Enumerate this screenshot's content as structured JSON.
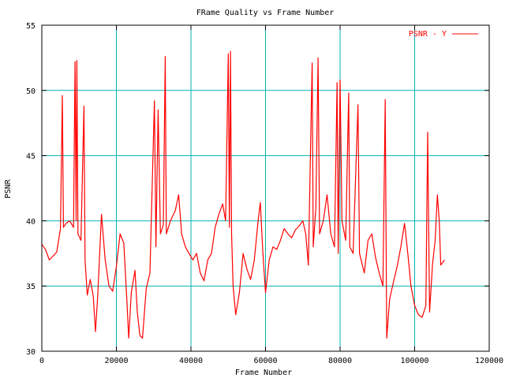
{
  "chart_data": {
    "type": "line",
    "title": "FRame Quality vs Frame Number",
    "xlabel": "Frame Number",
    "ylabel": "PSNR",
    "xlim": [
      0,
      120000
    ],
    "ylim": [
      30,
      55
    ],
    "x_ticks": [
      0,
      20000,
      40000,
      60000,
      80000,
      100000,
      120000
    ],
    "y_ticks": [
      30,
      35,
      40,
      45,
      50,
      55
    ],
    "x_tick_labels": [
      "0",
      "20000",
      "40000",
      "60000",
      "80000",
      "100000",
      "120000"
    ],
    "y_tick_labels": [
      "30",
      "35",
      "40",
      "45",
      "50",
      "55"
    ],
    "grid": true,
    "legend_position": "top-right",
    "colors": {
      "series": "#ff0000",
      "grid": "#00b3b3",
      "axis": "#000000",
      "text": "#000000"
    },
    "series": [
      {
        "name": "PSNR - Y",
        "points": [
          [
            0,
            38.2
          ],
          [
            1000,
            37.8
          ],
          [
            2000,
            37.0
          ],
          [
            3000,
            37.3
          ],
          [
            4000,
            37.6
          ],
          [
            5000,
            39.4
          ],
          [
            5500,
            49.6
          ],
          [
            5800,
            39.5
          ],
          [
            6500,
            39.8
          ],
          [
            7500,
            40.0
          ],
          [
            8500,
            39.5
          ],
          [
            8900,
            52.2
          ],
          [
            9200,
            40.0
          ],
          [
            9400,
            52.3
          ],
          [
            9700,
            39.0
          ],
          [
            10500,
            38.5
          ],
          [
            11300,
            48.8
          ],
          [
            11600,
            37.0
          ],
          [
            12200,
            34.3
          ],
          [
            13000,
            35.5
          ],
          [
            13800,
            34.2
          ],
          [
            14400,
            31.5
          ],
          [
            15000,
            34.3
          ],
          [
            16000,
            40.5
          ],
          [
            17000,
            37.0
          ],
          [
            18000,
            35.0
          ],
          [
            19000,
            34.6
          ],
          [
            20000,
            36.5
          ],
          [
            21000,
            39.0
          ],
          [
            22000,
            38.3
          ],
          [
            22800,
            34.0
          ],
          [
            23300,
            31.0
          ],
          [
            24000,
            34.5
          ],
          [
            25000,
            36.2
          ],
          [
            25600,
            33.0
          ],
          [
            26300,
            31.2
          ],
          [
            27000,
            31.0
          ],
          [
            28000,
            34.8
          ],
          [
            29000,
            36.0
          ],
          [
            30200,
            49.2
          ],
          [
            30600,
            38.0
          ],
          [
            31200,
            48.5
          ],
          [
            31800,
            39.0
          ],
          [
            32600,
            39.7
          ],
          [
            33100,
            52.6
          ],
          [
            33400,
            39.0
          ],
          [
            34500,
            40.0
          ],
          [
            35800,
            40.8
          ],
          [
            36700,
            42.0
          ],
          [
            37500,
            39.0
          ],
          [
            38500,
            38.0
          ],
          [
            39500,
            37.5
          ],
          [
            40500,
            37.0
          ],
          [
            41500,
            37.5
          ],
          [
            42500,
            36.0
          ],
          [
            43500,
            35.4
          ],
          [
            44500,
            37.0
          ],
          [
            45500,
            37.5
          ],
          [
            46500,
            39.5
          ],
          [
            47500,
            40.5
          ],
          [
            48500,
            41.3
          ],
          [
            49300,
            40.0
          ],
          [
            50000,
            52.8
          ],
          [
            50300,
            39.5
          ],
          [
            50600,
            53.0
          ],
          [
            50900,
            39.0
          ],
          [
            51300,
            35.0
          ],
          [
            52000,
            32.8
          ],
          [
            53000,
            34.5
          ],
          [
            54000,
            37.5
          ],
          [
            55000,
            36.3
          ],
          [
            56000,
            35.5
          ],
          [
            57000,
            37.0
          ],
          [
            58000,
            40.0
          ],
          [
            58600,
            41.4
          ],
          [
            59300,
            37.5
          ],
          [
            60000,
            34.5
          ],
          [
            61000,
            37.0
          ],
          [
            62000,
            38.0
          ],
          [
            63000,
            37.8
          ],
          [
            64000,
            38.5
          ],
          [
            65000,
            39.4
          ],
          [
            66000,
            39.0
          ],
          [
            67000,
            38.7
          ],
          [
            68000,
            39.3
          ],
          [
            69000,
            39.6
          ],
          [
            70000,
            40.0
          ],
          [
            70800,
            39.0
          ],
          [
            71500,
            36.6
          ],
          [
            72500,
            52.1
          ],
          [
            72800,
            38.0
          ],
          [
            73500,
            41.0
          ],
          [
            74100,
            52.5
          ],
          [
            74500,
            39.0
          ],
          [
            75500,
            40.0
          ],
          [
            76500,
            42.0
          ],
          [
            77500,
            39.0
          ],
          [
            78500,
            38.0
          ],
          [
            79200,
            50.6
          ],
          [
            79500,
            37.5
          ],
          [
            80000,
            50.8
          ],
          [
            80500,
            40.0
          ],
          [
            81500,
            38.5
          ],
          [
            82300,
            49.8
          ],
          [
            82600,
            38.0
          ],
          [
            83500,
            37.5
          ],
          [
            84800,
            48.9
          ],
          [
            85200,
            37.5
          ],
          [
            86500,
            36.0
          ],
          [
            87500,
            38.5
          ],
          [
            88500,
            39.0
          ],
          [
            89500,
            37.2
          ],
          [
            90500,
            36.0
          ],
          [
            91500,
            35.0
          ],
          [
            92100,
            49.3
          ],
          [
            92500,
            31.0
          ],
          [
            93300,
            34.0
          ],
          [
            94300,
            35.3
          ],
          [
            95300,
            36.5
          ],
          [
            96300,
            38.0
          ],
          [
            97300,
            39.8
          ],
          [
            98200,
            37.4
          ],
          [
            99000,
            35.0
          ],
          [
            100000,
            33.5
          ],
          [
            101000,
            32.8
          ],
          [
            102000,
            32.6
          ],
          [
            103000,
            33.5
          ],
          [
            103500,
            46.8
          ],
          [
            104000,
            33.0
          ],
          [
            104800,
            36.7
          ],
          [
            105500,
            38.5
          ],
          [
            106100,
            42.0
          ],
          [
            106600,
            40.0
          ],
          [
            107000,
            36.6
          ],
          [
            108000,
            37.0
          ]
        ]
      }
    ]
  }
}
